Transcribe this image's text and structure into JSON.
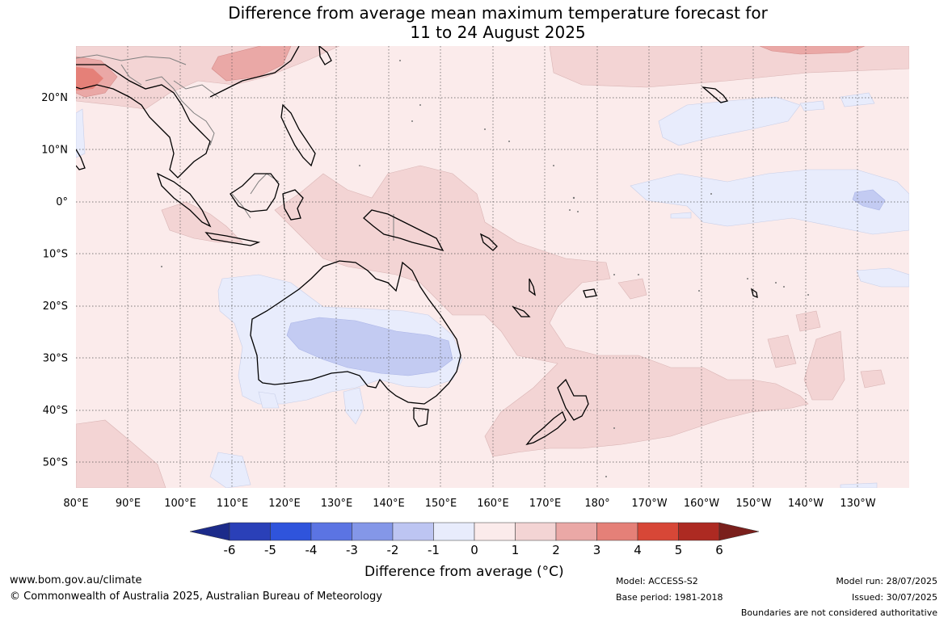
{
  "title": {
    "line1": "Difference from average mean maximum temperature forecast for",
    "line2": "11 to 24 August 2025"
  },
  "map": {
    "lon_labels": [
      "80°E",
      "90°E",
      "100°E",
      "110°E",
      "120°E",
      "130°E",
      "140°E",
      "150°E",
      "160°E",
      "170°E",
      "180°",
      "170°W",
      "160°W",
      "150°W",
      "140°W",
      "130°W"
    ],
    "lat_labels": [
      "20°N",
      "10°N",
      "0°",
      "10°S",
      "20°S",
      "30°S",
      "40°S",
      "50°S"
    ],
    "colors": {
      "background_anomaly_0_1": "#fbebeb",
      "anomaly_1_2": "#f3d4d4",
      "anomaly_2_3": "#eaa8a6",
      "anomaly_3_4": "#e58078",
      "anomaly_neg_1_0": "#e8ecfc",
      "anomaly_neg_2_1": "#c3cbf2",
      "coastline": "#000000",
      "borders": "#7f7f7f",
      "gridline": "#555555"
    }
  },
  "colorbar": {
    "labels": [
      "-6",
      "-5",
      "-4",
      "-3",
      "-2",
      "-1",
      "0",
      "1",
      "2",
      "3",
      "4",
      "5",
      "6"
    ],
    "colors": [
      "#1c2b8a",
      "#2a40b8",
      "#2f54dc",
      "#5b74e3",
      "#8497e8",
      "#bdc5f2",
      "#e8ecfc",
      "#fbebeb",
      "#f3d4d4",
      "#eaa8a6",
      "#e58078",
      "#d74737",
      "#ad2a22",
      "#7a1f1c"
    ],
    "title": "Difference from average (°C)"
  },
  "footer": {
    "url": "www.bom.gov.au/climate",
    "copyright": "© Commonwealth of Australia 2025, Australian Bureau of Meteorology",
    "model": "Model: ACCESS-S2",
    "base_period": "Base period: 1981-2018",
    "model_run": "Model run: 28/07/2025",
    "issued": "Issued: 30/07/2025",
    "disclaimer": "Boundaries are not considered authoritative"
  }
}
